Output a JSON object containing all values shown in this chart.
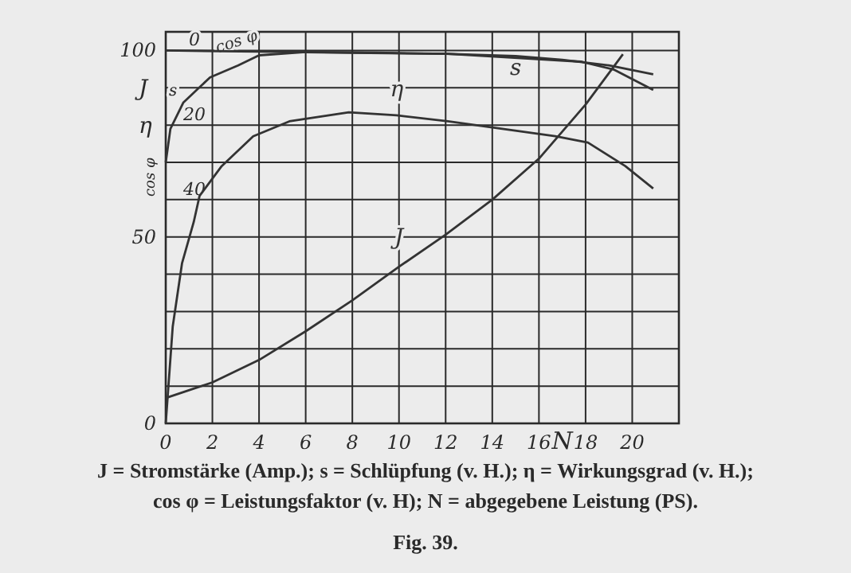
{
  "chart_data": {
    "type": "line",
    "title": "Fig. 39.",
    "xlabel": "N",
    "x": [
      0,
      2,
      4,
      6,
      8,
      10,
      12,
      14,
      16,
      18,
      19.6
    ],
    "xlim": [
      0,
      22
    ],
    "xticks": [
      0,
      2,
      4,
      6,
      8,
      10,
      12,
      14,
      16,
      18,
      20
    ],
    "ylim": [
      0,
      105
    ],
    "yticks": [
      0,
      {
        "value": 10,
        "label": null
      },
      {
        "value": 20,
        "label": null
      },
      {
        "value": 30,
        "label": null
      },
      {
        "value": 40,
        "label": null
      },
      50,
      {
        "value": 60,
        "label": null
      },
      {
        "value": 70,
        "label": null
      },
      {
        "value": 80,
        "label": null
      },
      {
        "value": 90,
        "label": null
      },
      100
    ],
    "y2lim": [
      100,
      -5
    ],
    "y2ticks": [
      0,
      20,
      40
    ],
    "grid": true,
    "marker": "none",
    "line_style": "solid",
    "series": [
      {
        "name": "J",
        "color": "#333333",
        "values": [
          6.8,
          11,
          17,
          24.7,
          33,
          42,
          50.6,
          60,
          71,
          85.5,
          99
        ]
      },
      {
        "name": "η",
        "color": "#333333",
        "x": [
          0,
          0.3,
          0.7,
          1.2,
          1.45,
          2.4,
          3.75,
          5.3,
          7.85,
          9.9,
          12.1,
          16.7,
          18.1,
          19.7,
          20.9
        ],
        "values": [
          0,
          26,
          43,
          54,
          61,
          69,
          77,
          81,
          83.4,
          82.6,
          81,
          77,
          75.3,
          69,
          63
        ]
      },
      {
        "name": "cos φ",
        "color": "#333333",
        "x": [
          0,
          0.2,
          0.75,
          1.9,
          3.1,
          4,
          6,
          9,
          12.1,
          17.8,
          19.2,
          20.9
        ],
        "values": [
          70,
          79,
          86,
          92.8,
          96,
          98.7,
          99.6,
          99.4,
          99.1,
          97,
          94.9,
          89.4
        ]
      },
      {
        "name": "s",
        "color": "#333333",
        "axis": "y2",
        "x": [
          0,
          4,
          8,
          12,
          15,
          17,
          19,
          20.9
        ],
        "values": [
          0,
          0.3,
          0.6,
          0.9,
          1.5,
          2.5,
          4,
          6.4
        ]
      }
    ],
    "annotations": [
      "J",
      "s",
      "η",
      "cos φ",
      "J = Stromstärke (Amp.); s = Schlüpfung (v. H.); η = Wirkungsgrad (v. H.);",
      "cos φ = Leistungsfaktor (v. H); N = abgegebene Leistung (PS)."
    ]
  }
}
